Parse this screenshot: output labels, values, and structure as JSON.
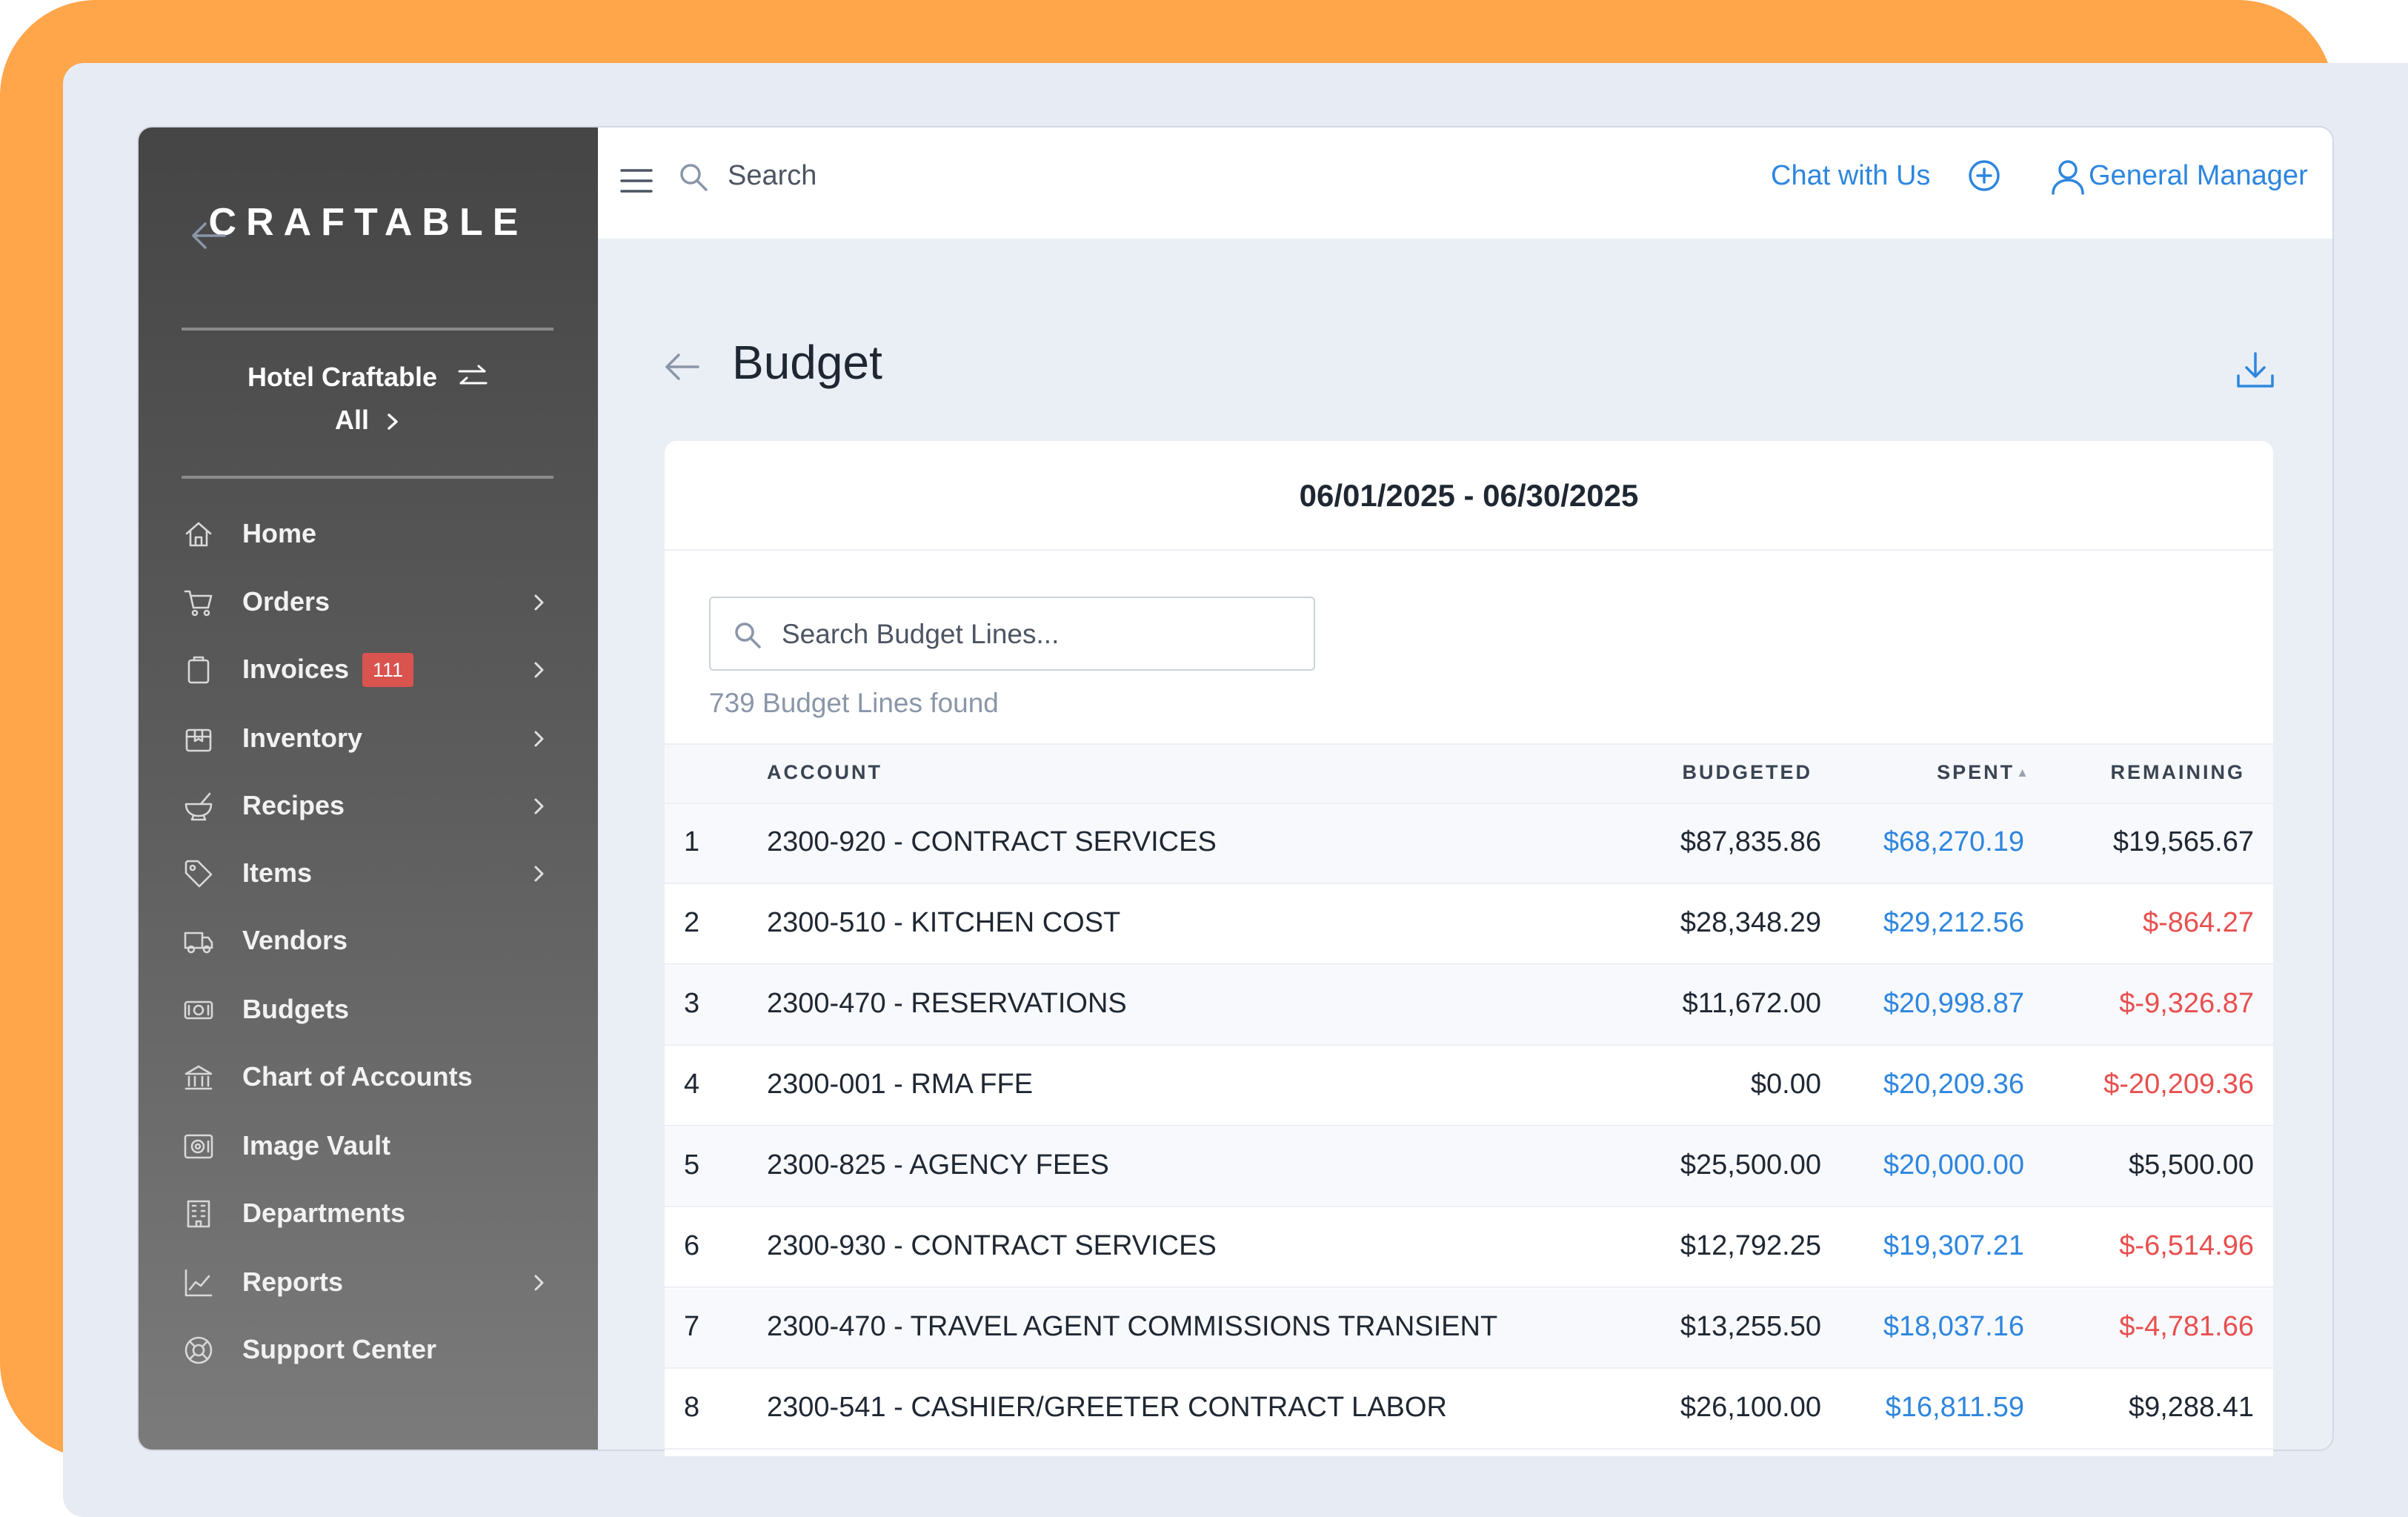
{
  "sidebar": {
    "logo": "CRAFTABLE",
    "location": {
      "name": "Hotel Craftable",
      "scope": "All"
    },
    "items": [
      {
        "label": "Home",
        "icon": "home-icon",
        "chevron": false
      },
      {
        "label": "Orders",
        "icon": "cart-icon",
        "chevron": true
      },
      {
        "label": "Invoices",
        "icon": "clipboard-icon",
        "chevron": true,
        "badge": "111"
      },
      {
        "label": "Inventory",
        "icon": "box-icon",
        "chevron": true
      },
      {
        "label": "Recipes",
        "icon": "mortar-icon",
        "chevron": true
      },
      {
        "label": "Items",
        "icon": "tag-icon",
        "chevron": true
      },
      {
        "label": "Vendors",
        "icon": "truck-icon",
        "chevron": false
      },
      {
        "label": "Budgets",
        "icon": "money-icon",
        "chevron": false
      },
      {
        "label": "Chart of Accounts",
        "icon": "bank-icon",
        "chevron": false
      },
      {
        "label": "Image Vault",
        "icon": "safe-icon",
        "chevron": false
      },
      {
        "label": "Departments",
        "icon": "building-icon",
        "chevron": false
      },
      {
        "label": "Reports",
        "icon": "chart-icon",
        "chevron": true
      },
      {
        "label": "Support Center",
        "icon": "lifebuoy-icon",
        "chevron": false
      }
    ]
  },
  "topbar": {
    "search_label": "Search",
    "chat_label": "Chat with Us",
    "user_label": "General Manager"
  },
  "page": {
    "title": "Budget",
    "date_range": "06/01/2025 - 06/30/2025",
    "search_placeholder": "Search Budget Lines...",
    "found_text": "739 Budget Lines found"
  },
  "table": {
    "columns": {
      "account": "ACCOUNT",
      "budgeted": "BUDGETED",
      "spent": "SPENT",
      "remaining": "REMAINING"
    },
    "rows": [
      {
        "num": "1",
        "account": "2300-920 - CONTRACT SERVICES",
        "budgeted": "$87,835.86",
        "spent": "$68,270.19",
        "remaining": "$19,565.67",
        "negative": false
      },
      {
        "num": "2",
        "account": "2300-510 - KITCHEN COST",
        "budgeted": "$28,348.29",
        "spent": "$29,212.56",
        "remaining": "$-864.27",
        "negative": true
      },
      {
        "num": "3",
        "account": "2300-470 - RESERVATIONS",
        "budgeted": "$11,672.00",
        "spent": "$20,998.87",
        "remaining": "$-9,326.87",
        "negative": true
      },
      {
        "num": "4",
        "account": "2300-001 - RMA FFE",
        "budgeted": "$0.00",
        "spent": "$20,209.36",
        "remaining": "$-20,209.36",
        "negative": true
      },
      {
        "num": "5",
        "account": "2300-825 - AGENCY FEES",
        "budgeted": "$25,500.00",
        "spent": "$20,000.00",
        "remaining": "$5,500.00",
        "negative": false
      },
      {
        "num": "6",
        "account": "2300-930 - CONTRACT SERVICES",
        "budgeted": "$12,792.25",
        "spent": "$19,307.21",
        "remaining": "$-6,514.96",
        "negative": true
      },
      {
        "num": "7",
        "account": "2300-470 - TRAVEL AGENT COMMISSIONS TRANSIENT",
        "budgeted": "$13,255.50",
        "spent": "$18,037.16",
        "remaining": "$-4,781.66",
        "negative": true
      },
      {
        "num": "8",
        "account": "2300-541 - CASHIER/GREETER CONTRACT LABOR",
        "budgeted": "$26,100.00",
        "spent": "$16,811.59",
        "remaining": "$9,288.41",
        "negative": false
      }
    ]
  },
  "colors": {
    "accent": "#2e86de",
    "negative": "#e84f4f",
    "badge": "#d9534f",
    "brand_orange": "#ffa54a"
  }
}
